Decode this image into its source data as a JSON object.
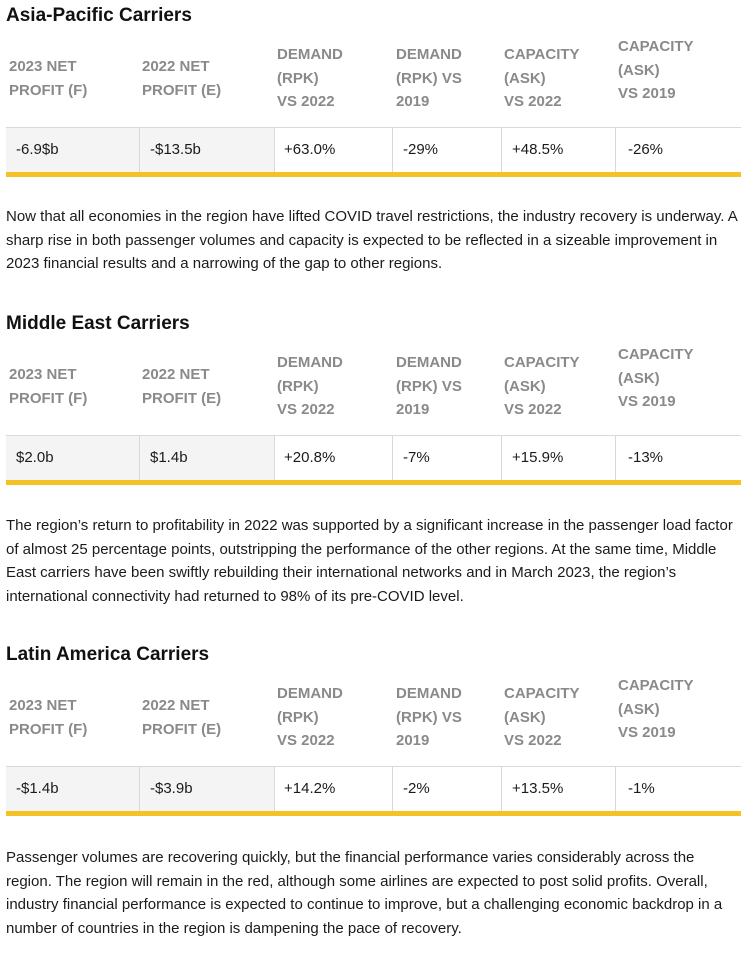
{
  "headers": [
    "2023 NET\nPROFIT (F)",
    "2022 NET\nPROFIT (E)",
    "DEMAND\n(RPK)\nVS 2022",
    "DEMAND\n(RPK) VS\n2019",
    "CAPACITY\n(ASK)\nVS 2022",
    "CAPACITY\n(ASK)\nVS 2019"
  ],
  "sections": [
    {
      "title": "Asia-Pacific Carriers",
      "values": [
        "-6.9$b",
        "-$13.5b",
        "+63.0%",
        "-29%",
        "+48.5%",
        "-26%"
      ],
      "paragraph": "Now that all economies in the region have lifted COVID travel restrictions, the industry recovery is underway. A sharp rise in both passenger volumes and capacity is expected to be reflected in a sizeable improvement in 2023 financial results and a narrowing of the gap to other regions."
    },
    {
      "title": "Middle East Carriers",
      "values": [
        "$2.0b",
        "$1.4b",
        "+20.8%",
        "-7%",
        "+15.9%",
        "-13%"
      ],
      "paragraph": "The region’s return to profitability in 2022 was supported by a significant increase in the passenger load factor of almost 25 percentage points, outstripping the performance of the other regions.  At the same time, Middle East carriers have been swiftly rebuilding their international networks and in March 2023, the region’s international connectivity had returned to 98% of its pre-COVID level."
    },
    {
      "title": "Latin America Carriers",
      "values": [
        "-$1.4b",
        "-$3.9b",
        "+14.2%",
        "-2%",
        "+13.5%",
        "-1%"
      ],
      "paragraph": "Passenger volumes are recovering quickly, but the financial performance varies considerably across the region. The region will remain in the red, although some airlines are expected to post solid profits. Overall, industry financial performance is expected to continue to improve, but a challenging economic backdrop in a number of countries in the region is dampening the pace of recovery."
    }
  ],
  "colors": {
    "accent_bar": "#f5c226",
    "header_text": "#8a8a8a",
    "shaded_cell": "#f4f4f4"
  }
}
